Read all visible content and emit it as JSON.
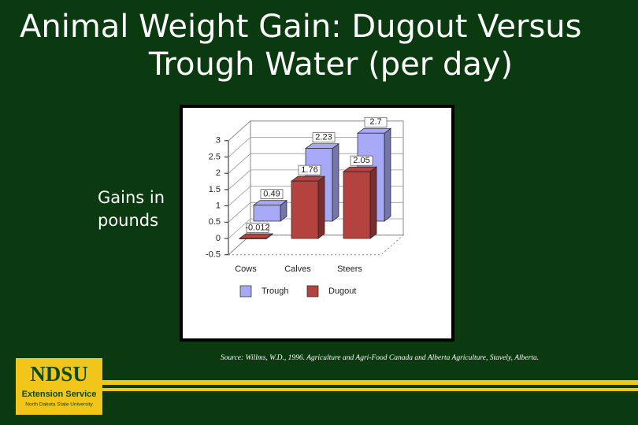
{
  "slide": {
    "title": [
      "Animal Weight Gain: Dugout Versus",
      "Trough Water (per day)"
    ],
    "source": "Source: Willms, W.D., 1996. Agriculture and Agri-Food Canada and Alberta Agriculture, Stavely, Alberta.",
    "logo": {
      "name": "NDSU",
      "unit": "Extension Service",
      "university": "North Dakota State University"
    }
  },
  "chart_data": {
    "type": "bar",
    "y_label": "Gains in pounds",
    "categories": [
      "Cows",
      "Calves",
      "Steers"
    ],
    "series": [
      {
        "name": "Trough",
        "color": "#a7a9f6",
        "values": [
          0.49,
          2.23,
          2.7
        ]
      },
      {
        "name": "Dugout",
        "color": "#b4433f",
        "values": [
          -0.012,
          1.76,
          2.05
        ]
      }
    ],
    "ylim": [
      -0.5,
      3
    ],
    "yticks": [
      -0.5,
      0,
      0.5,
      1,
      1.5,
      2,
      2.5,
      3
    ],
    "grid": true
  }
}
